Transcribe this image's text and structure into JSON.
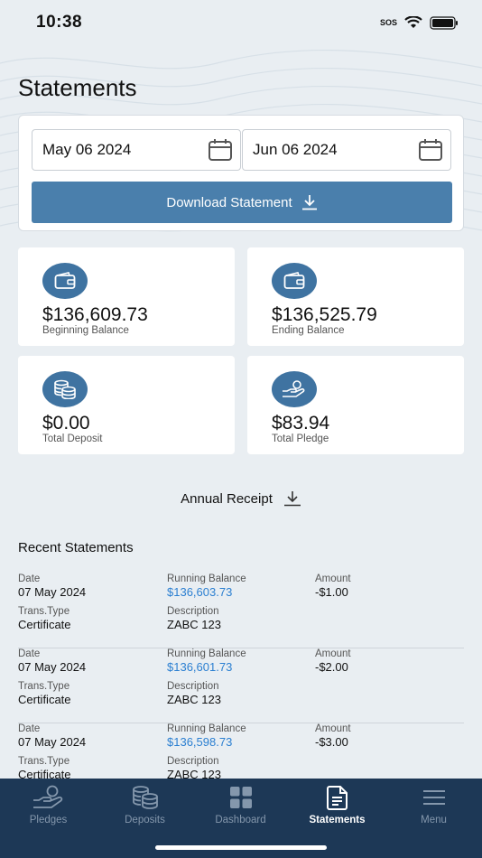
{
  "status": {
    "time": "10:38",
    "sos": "SOS"
  },
  "page": {
    "title": "Statements"
  },
  "filter": {
    "from_date": "May 06 2024",
    "to_date": "Jun 06 2024",
    "download_label": "Download Statement"
  },
  "stats": {
    "beginning": {
      "value": "$136,609.73",
      "label": "Beginning Balance",
      "icon": "wallet-icon"
    },
    "ending": {
      "value": "$136,525.79",
      "label": "Ending Balance",
      "icon": "wallet-icon"
    },
    "deposit": {
      "value": "$0.00",
      "label": "Total Deposit",
      "icon": "coins-icon"
    },
    "pledge": {
      "value": "$83.94",
      "label": "Total Pledge",
      "icon": "hand-coins-icon"
    }
  },
  "annual_receipt": {
    "label": "Annual Receipt"
  },
  "recent": {
    "title": "Recent Statements",
    "labels": {
      "date": "Date",
      "running_balance": "Running Balance",
      "amount": "Amount",
      "trans_type": "Trans.Type",
      "description": "Description"
    },
    "rows": [
      {
        "date": "07 May 2024",
        "running_balance": "$136,603.73",
        "amount": "-$1.00",
        "trans_type": "Certificate",
        "description": "ZABC 123"
      },
      {
        "date": "07 May 2024",
        "running_balance": "$136,601.73",
        "amount": "-$2.00",
        "trans_type": "Certificate",
        "description": "ZABC 123"
      },
      {
        "date": "07 May 2024",
        "running_balance": "$136,598.73",
        "amount": "-$3.00",
        "trans_type": "Certificate",
        "description": "ZABC 123"
      }
    ]
  },
  "tabs": [
    {
      "label": "Pledges",
      "icon": "hand-coins-icon",
      "active": false
    },
    {
      "label": "Deposits",
      "icon": "coins-icon",
      "active": false
    },
    {
      "label": "Dashboard",
      "icon": "grid-icon",
      "active": false
    },
    {
      "label": "Statements",
      "icon": "document-icon",
      "active": true
    },
    {
      "label": "Menu",
      "icon": "menu-icon",
      "active": false
    }
  ],
  "colors": {
    "accent": "#4a7fac",
    "tabbar": "#1d3856",
    "link": "#2b7fd1",
    "background": "#e9eef2"
  }
}
